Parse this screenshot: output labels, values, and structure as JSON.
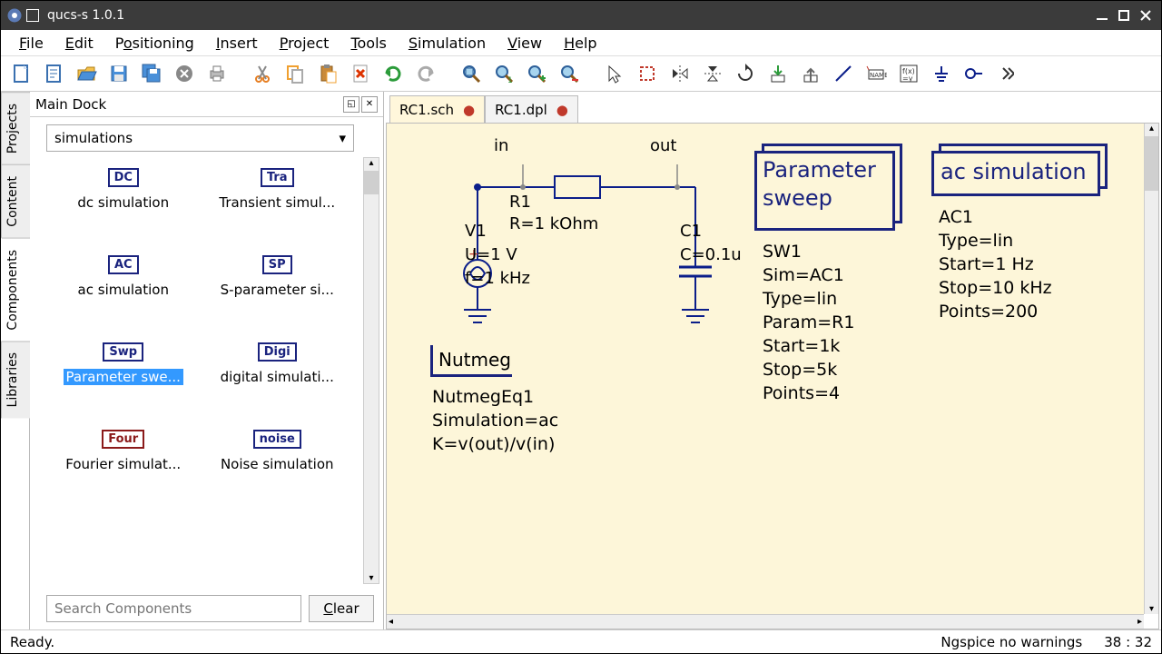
{
  "window": {
    "title": "qucs-s 1.0.1"
  },
  "menu": {
    "items": [
      "File",
      "Edit",
      "Positioning",
      "Insert",
      "Project",
      "Tools",
      "Simulation",
      "View",
      "Help"
    ]
  },
  "dock": {
    "title": "Main Dock",
    "combo": "simulations",
    "sideTabs": [
      "Projects",
      "Content",
      "Components",
      "Libraries"
    ],
    "activeSideTab": 2,
    "components": [
      {
        "chip": "DC",
        "chipStyle": "blue",
        "label": "dc simulation"
      },
      {
        "chip": "Tra",
        "chipStyle": "blue",
        "label": "Transient simul..."
      },
      {
        "chip": "AC",
        "chipStyle": "blue",
        "label": "ac simulation"
      },
      {
        "chip": "SP",
        "chipStyle": "blue",
        "label": "S-parameter si..."
      },
      {
        "chip": "Swp",
        "chipStyle": "blue",
        "label": "Parameter swe...",
        "selected": true
      },
      {
        "chip": "Digi",
        "chipStyle": "blue",
        "label": "digital simulati..."
      },
      {
        "chip": "Four",
        "chipStyle": "red",
        "label": "Fourier simulat..."
      },
      {
        "chip": "noise",
        "chipStyle": "blue",
        "label": "Noise simulation"
      }
    ],
    "searchPlaceholder": "Search Components",
    "clearLabel": "Clear"
  },
  "tabs": [
    {
      "label": "RC1.sch",
      "active": true
    },
    {
      "label": "RC1.dpl",
      "active": false
    }
  ],
  "schematic": {
    "netIn": "in",
    "netOut": "out",
    "r": {
      "name": "R1",
      "val": "R=1 kOhm"
    },
    "v": {
      "name": "V1",
      "u": "U=1 V",
      "f": "f=1 kHz"
    },
    "c": {
      "name": "C1",
      "val": "C=0.1u"
    },
    "nutmeg": {
      "title": "Nutmeg",
      "l1": "NutmegEq1",
      "l2": "Simulation=ac",
      "l3": "K=v(out)/v(in)"
    },
    "sweep": {
      "title": "Parameter\nsweep",
      "lines": [
        "SW1",
        "Sim=AC1",
        "Type=lin",
        "Param=R1",
        "Start=1k",
        "Stop=5k",
        "Points=4"
      ]
    },
    "ac": {
      "title": "ac simulation",
      "lines": [
        "AC1",
        "Type=lin",
        "Start=1 Hz",
        "Stop=10 kHz",
        "Points=200"
      ]
    }
  },
  "status": {
    "left": "Ready.",
    "sim": "Ngspice  no warnings",
    "cursor": "38 : 32"
  },
  "colors": {
    "canvas_bg": "#fdf6d9",
    "wire": "#0b1e8a",
    "box": "#1a237e"
  }
}
